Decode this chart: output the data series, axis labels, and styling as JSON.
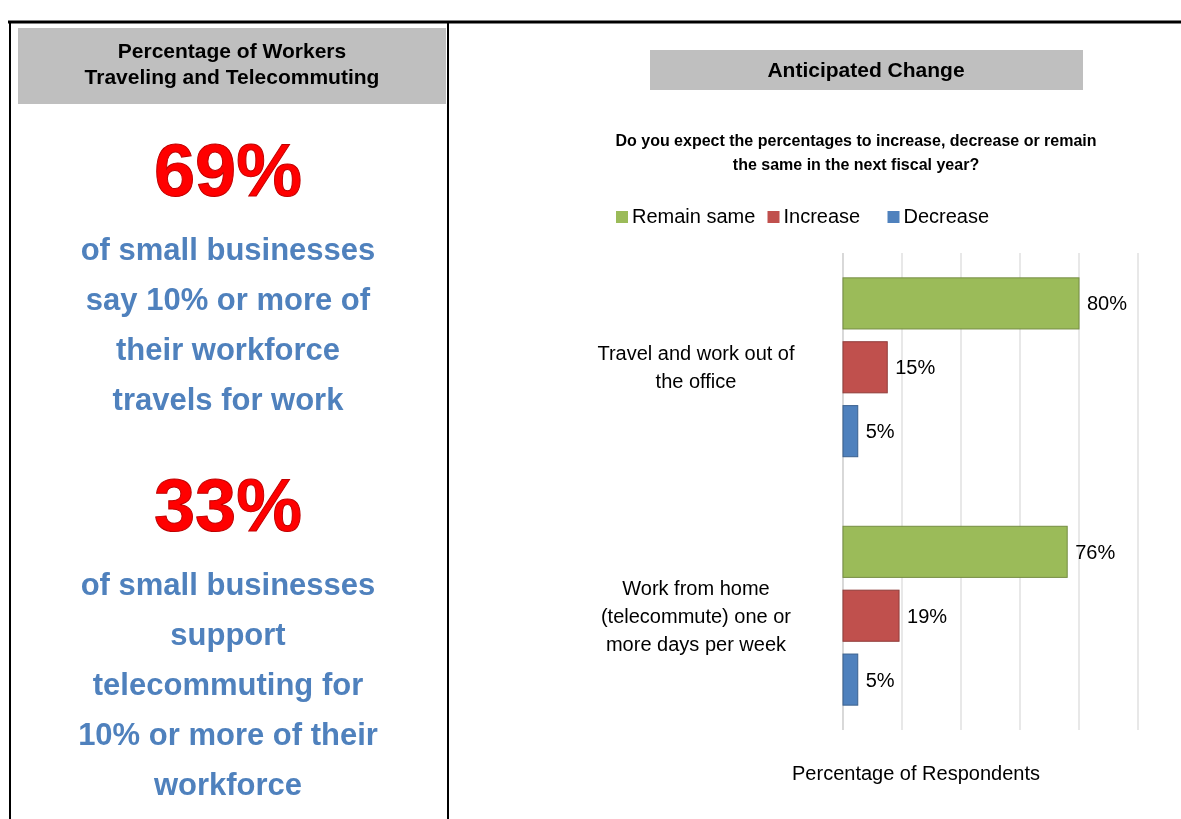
{
  "chart_data": [
    {
      "type": "other",
      "title": "Percentage of Workers Traveling and Telecommuting",
      "annotations": [
        "69%",
        "of small businesses say 10% or more of their workforce travels for work",
        "33%",
        "of small businesses support telecommuting for 10% or more of their workforce"
      ]
    },
    {
      "type": "bar",
      "orientation": "horizontal",
      "title": "Anticipated Change",
      "subtitle": "Do you expect the percentages to increase, decrease or remain the same in the next fiscal year?",
      "xlabel": "Percentage of Respondents",
      "categories": [
        "Travel and work out of the office",
        "Work from home (telecommute) one or more days per week"
      ],
      "series": [
        {
          "name": "Remain same",
          "color": "#9bbb59",
          "values": [
            80,
            76
          ],
          "value_labels": [
            "80%",
            "76%"
          ]
        },
        {
          "name": "Increase",
          "color": "#c0504d",
          "values": [
            15,
            19
          ],
          "value_labels": [
            "15%",
            "19%"
          ]
        },
        {
          "name": "Decrease",
          "color": "#4f81bd",
          "values": [
            5,
            5
          ],
          "value_labels": [
            "5%",
            "5%"
          ]
        }
      ],
      "xlim": [
        0,
        100
      ],
      "xticks": [
        {
          "value": 0,
          "label": null
        },
        {
          "value": 20,
          "label": null
        },
        {
          "value": 40,
          "label": null
        },
        {
          "value": 60,
          "label": null
        },
        {
          "value": 80,
          "label": null
        },
        {
          "value": 100,
          "label": null
        }
      ],
      "tick_labels": "y",
      "grid": "x",
      "legend": "top"
    }
  ]
}
